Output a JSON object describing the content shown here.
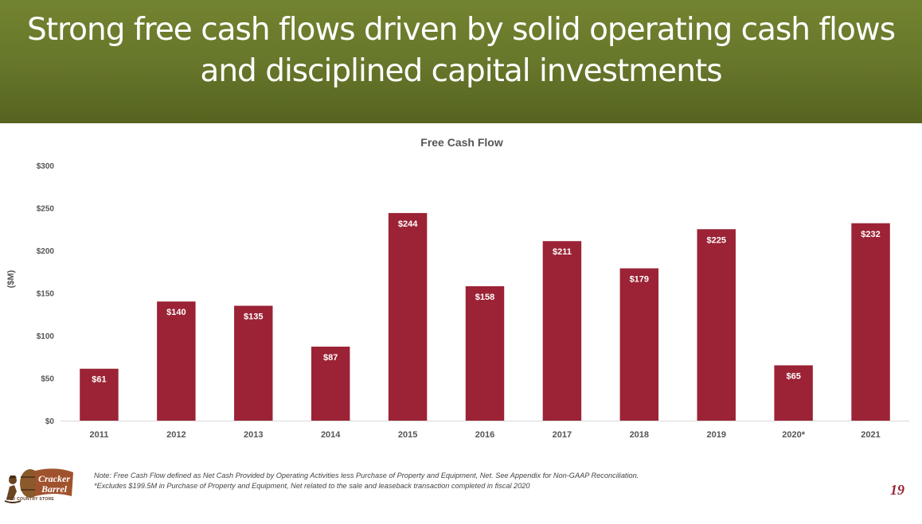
{
  "slide": {
    "title_line1": "Strong free cash flows driven by solid operating cash flows",
    "title_line2": "and disciplined capital investments",
    "note_line1": "Note: Free Cash Flow defined as Net Cash Provided by Operating Activities less Purchase of Property and Equipment, Net. See Appendix for Non-GAAP Reconciliation.",
    "note_line2": "*Excludes $199.5M in Purchase of Property and Equipment, Net related to the sale and leaseback transaction completed in fiscal 2020",
    "page_number": "19",
    "logo_text_top": "Cracker",
    "logo_text_bottom": "Barrel",
    "logo_tagline": "OLD COUNTRY STORE"
  },
  "colors": {
    "banner": "#67772b",
    "bar": "#9b2335",
    "accent": "#9b2335"
  },
  "chart_data": {
    "type": "bar",
    "title": "Free Cash Flow",
    "ylabel": "($M)",
    "xlabel": "",
    "categories": [
      "2011",
      "2012",
      "2013",
      "2014",
      "2015",
      "2016",
      "2017",
      "2018",
      "2019",
      "2020*",
      "2021"
    ],
    "values": [
      61,
      140,
      135,
      87,
      244,
      158,
      211,
      179,
      225,
      65,
      232
    ],
    "data_labels": [
      "$61",
      "$140",
      "$135",
      "$87",
      "$244",
      "$158",
      "$211",
      "$179",
      "$225",
      "$65",
      "$232"
    ],
    "ylim": [
      0,
      300
    ],
    "yticks": [
      0,
      50,
      100,
      150,
      200,
      250,
      300
    ],
    "ytick_labels": [
      "$0",
      "$50",
      "$100",
      "$150",
      "$200",
      "$250",
      "$300"
    ],
    "grid": false,
    "legend": "none"
  }
}
